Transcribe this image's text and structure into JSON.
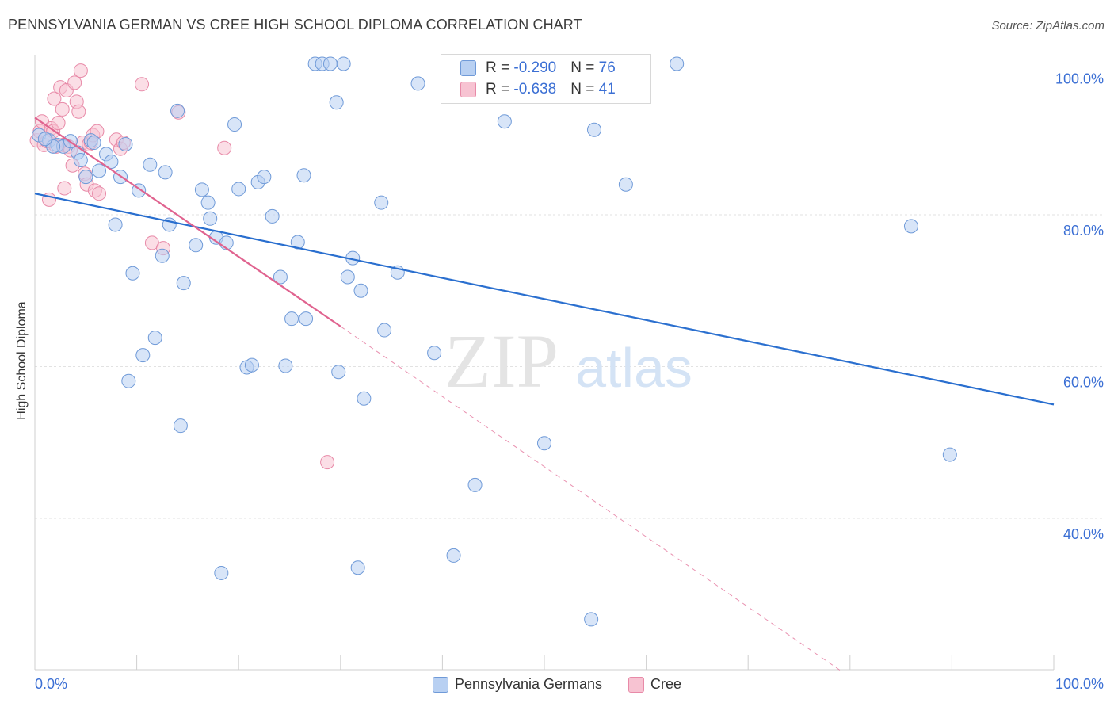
{
  "title": "PENNSYLVANIA GERMAN VS CREE HIGH SCHOOL DIPLOMA CORRELATION CHART",
  "source": "Source: ZipAtlas.com",
  "watermark": {
    "zip": "ZIP",
    "atlas": "atlas"
  },
  "legend": {
    "rows": [
      {
        "r_label": "R = ",
        "r_value": "-0.290",
        "n_label": "N = ",
        "n_value": "76"
      },
      {
        "r_label": "R = ",
        "r_value": "-0.638",
        "n_label": "N = ",
        "n_value": "41"
      }
    ]
  },
  "colors": {
    "blue_fill": "#b8d0f2",
    "blue_stroke": "#6f9ad8",
    "blue_line": "#2a6fcf",
    "pink_fill": "#f7c3d2",
    "pink_stroke": "#e88aa8",
    "pink_line": "#e0638f",
    "grid": "#e2e2e2",
    "axis_text": "#3b6fd4"
  },
  "chart_data": {
    "type": "scatter",
    "title": "PENNSYLVANIA GERMAN VS CREE HIGH SCHOOL DIPLOMA CORRELATION CHART",
    "xlabel": "",
    "ylabel": "High School Diploma",
    "xlim": [
      0,
      100
    ],
    "ylim": [
      20,
      102
    ],
    "x_tick_labels": [
      "0.0%",
      "100.0%"
    ],
    "y_ticks": [
      40,
      60,
      80,
      100
    ],
    "y_tick_labels": [
      "40.0%",
      "60.0%",
      "80.0%",
      "100.0%"
    ],
    "grid": true,
    "legend_position": "bottom",
    "series": [
      {
        "name": "Pennsylvania Germans",
        "points": [
          [
            0.4,
            90.5
          ],
          [
            1.4,
            89.8
          ],
          [
            2.2,
            89.2
          ],
          [
            2.8,
            89.0
          ],
          [
            3.5,
            89.7
          ],
          [
            4.2,
            88.2
          ],
          [
            4.5,
            87.2
          ],
          [
            5.0,
            85.0
          ],
          [
            5.5,
            89.8
          ],
          [
            6.3,
            85.8
          ],
          [
            7.0,
            88.0
          ],
          [
            7.5,
            87.0
          ],
          [
            7.9,
            78.7
          ],
          [
            8.4,
            85.0
          ],
          [
            8.9,
            89.3
          ],
          [
            9.6,
            72.3
          ],
          [
            10.2,
            83.2
          ],
          [
            10.6,
            61.5
          ],
          [
            11.3,
            86.6
          ],
          [
            11.8,
            63.8
          ],
          [
            12.5,
            74.6
          ],
          [
            12.8,
            85.6
          ],
          [
            13.2,
            78.7
          ],
          [
            14.0,
            93.7
          ],
          [
            14.6,
            71.0
          ],
          [
            15.8,
            76.0
          ],
          [
            16.4,
            83.3
          ],
          [
            17.0,
            81.6
          ],
          [
            17.2,
            79.5
          ],
          [
            17.8,
            77.0
          ],
          [
            18.8,
            76.3
          ],
          [
            19.6,
            91.9
          ],
          [
            20.0,
            83.4
          ],
          [
            20.8,
            59.9
          ],
          [
            21.3,
            60.2
          ],
          [
            21.9,
            84.3
          ],
          [
            22.5,
            85.0
          ],
          [
            23.3,
            79.8
          ],
          [
            24.1,
            71.8
          ],
          [
            24.6,
            60.1
          ],
          [
            25.2,
            66.3
          ],
          [
            25.8,
            76.4
          ],
          [
            26.4,
            85.2
          ],
          [
            26.6,
            66.3
          ],
          [
            27.5,
            99.9
          ],
          [
            28.2,
            99.9
          ],
          [
            29.0,
            99.9
          ],
          [
            29.6,
            94.8
          ],
          [
            29.8,
            59.3
          ],
          [
            30.3,
            99.9
          ],
          [
            30.7,
            71.8
          ],
          [
            31.2,
            74.3
          ],
          [
            32.0,
            70.0
          ],
          [
            32.3,
            55.8
          ],
          [
            34.0,
            81.6
          ],
          [
            34.3,
            64.8
          ],
          [
            35.6,
            72.4
          ],
          [
            37.6,
            97.3
          ],
          [
            39.2,
            61.8
          ],
          [
            43.2,
            44.4
          ],
          [
            46.1,
            92.3
          ],
          [
            50.0,
            49.9
          ],
          [
            54.9,
            91.2
          ],
          [
            54.6,
            26.7
          ],
          [
            58.0,
            84.0
          ],
          [
            63.0,
            99.9
          ],
          [
            86.0,
            78.5
          ],
          [
            89.8,
            48.4
          ],
          [
            18.3,
            32.8
          ],
          [
            31.7,
            33.5
          ],
          [
            41.1,
            35.1
          ],
          [
            14.3,
            52.2
          ],
          [
            9.2,
            58.1
          ],
          [
            1.8,
            89.0
          ],
          [
            5.8,
            89.5
          ],
          [
            1.0,
            90.0
          ]
        ]
      },
      {
        "name": "Cree",
        "points": [
          [
            0.2,
            89.8
          ],
          [
            0.5,
            91.0
          ],
          [
            0.7,
            92.3
          ],
          [
            0.9,
            89.2
          ],
          [
            1.2,
            89.7
          ],
          [
            1.4,
            82.0
          ],
          [
            1.6,
            91.4
          ],
          [
            1.8,
            91.0
          ],
          [
            1.9,
            95.3
          ],
          [
            2.1,
            89.0
          ],
          [
            2.3,
            92.1
          ],
          [
            2.5,
            96.8
          ],
          [
            2.7,
            93.9
          ],
          [
            2.8,
            89.2
          ],
          [
            2.9,
            83.5
          ],
          [
            3.1,
            96.4
          ],
          [
            3.3,
            89.0
          ],
          [
            3.5,
            88.5
          ],
          [
            3.7,
            86.5
          ],
          [
            3.9,
            97.4
          ],
          [
            4.1,
            94.9
          ],
          [
            4.3,
            93.6
          ],
          [
            4.5,
            99.0
          ],
          [
            4.7,
            89.5
          ],
          [
            4.9,
            85.4
          ],
          [
            5.1,
            84.0
          ],
          [
            5.3,
            89.3
          ],
          [
            5.5,
            89.5
          ],
          [
            5.7,
            90.5
          ],
          [
            5.9,
            83.2
          ],
          [
            6.1,
            91.0
          ],
          [
            6.3,
            82.8
          ],
          [
            8.0,
            89.9
          ],
          [
            8.4,
            88.7
          ],
          [
            8.7,
            89.5
          ],
          [
            10.5,
            97.2
          ],
          [
            11.5,
            76.3
          ],
          [
            12.6,
            75.6
          ],
          [
            14.1,
            93.5
          ],
          [
            18.6,
            88.8
          ],
          [
            28.7,
            47.4
          ]
        ]
      }
    ],
    "trend_lines": [
      {
        "series": "Pennsylvania Germans",
        "x": [
          0,
          100
        ],
        "y": [
          82.8,
          55.0
        ],
        "style": "solid"
      },
      {
        "series": "Cree",
        "x": [
          0,
          30
        ],
        "y": [
          92.8,
          65.3
        ],
        "style": "solid"
      },
      {
        "series": "Cree",
        "x": [
          30,
          79
        ],
        "y": [
          65.3,
          20.0
        ],
        "style": "dashed"
      }
    ]
  },
  "bottom_legend": {
    "blue_label": "Pennsylvania Germans",
    "pink_label": "Cree"
  }
}
